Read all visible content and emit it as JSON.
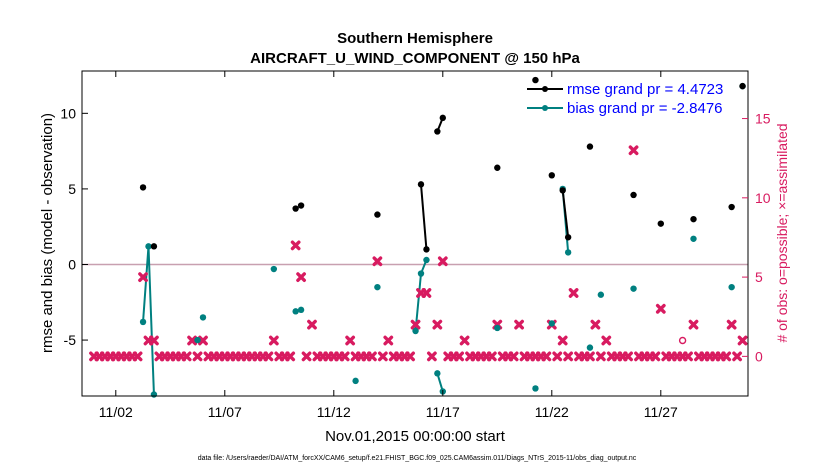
{
  "colors": {
    "rmse": "#000000",
    "bias": "#008080",
    "obs": "#d81b60",
    "zero": "#c8a0b0",
    "legend_text": "#0000ff"
  },
  "chart_data": {
    "type": "line",
    "title": "Southern Hemisphere",
    "subtitle": "AIRCRAFT_U_WIND_COMPONENT @ 150 hPa",
    "xlabel": "Nov.01,2015 00:00:00 start",
    "ylabel": "rmse and bias (model - observation)",
    "y2label": "# of obs: o=possible; ×=assimilated",
    "footnote": "data file: /Users/raeder/DAI/ATM_forcXX/CAM6_setup/f.e21.FHIST_BGC.f09_025.CAM6assim.011/Diags_NTrS_2015-11/obs_diag_output.nc",
    "xlim": [
      0.45,
      31.0
    ],
    "ylim": [
      -8.7,
      12.8
    ],
    "y2lim": [
      -2.5,
      18.0
    ],
    "xticks": [
      {
        "day": 2,
        "label": "11/02"
      },
      {
        "day": 7,
        "label": "11/07"
      },
      {
        "day": 12,
        "label": "11/12"
      },
      {
        "day": 17,
        "label": "11/17"
      },
      {
        "day": 22,
        "label": "11/22"
      },
      {
        "day": 27,
        "label": "11/27"
      }
    ],
    "yticks": [
      {
        "value": -5,
        "label": "-5"
      },
      {
        "value": 0,
        "label": "0"
      },
      {
        "value": 5,
        "label": "5"
      },
      {
        "value": 10,
        "label": "10"
      }
    ],
    "y2ticks": [
      {
        "value": 0,
        "label": "0"
      },
      {
        "value": 5,
        "label": "5"
      },
      {
        "value": 10,
        "label": "10"
      },
      {
        "value": 15,
        "label": "15"
      }
    ],
    "legend": [
      {
        "name": "rmse",
        "label": "rmse grand pr = 4.4723",
        "color": "#000000"
      },
      {
        "name": "bias",
        "label": "bias grand pr = -2.8476",
        "color": "#008080"
      }
    ],
    "rmse": [
      [
        [
          3.25,
          5.1
        ]
      ],
      [
        [
          3.75,
          1.2
        ]
      ],
      [
        [
          10.25,
          3.7
        ]
      ],
      [
        [
          10.5,
          3.9
        ]
      ],
      [
        [
          14.0,
          3.3
        ]
      ],
      [
        [
          16.0,
          5.3
        ],
        [
          16.25,
          1.0
        ]
      ],
      [
        [
          16.75,
          8.8
        ],
        [
          17.0,
          9.7
        ]
      ],
      [
        [
          19.5,
          6.4
        ]
      ],
      [
        [
          21.25,
          12.2
        ]
      ],
      [
        [
          22.0,
          5.9
        ]
      ],
      [
        [
          22.5,
          4.9
        ],
        [
          22.75,
          1.8
        ]
      ],
      [
        [
          23.75,
          7.8
        ]
      ],
      [
        [
          25.75,
          4.6
        ]
      ],
      [
        [
          27.0,
          2.7
        ]
      ],
      [
        [
          28.5,
          3.0
        ]
      ],
      [
        [
          30.25,
          3.8
        ]
      ],
      [
        [
          30.75,
          11.8
        ]
      ]
    ],
    "bias": [
      [
        [
          3.25,
          -3.8
        ],
        [
          3.5,
          1.2
        ],
        [
          3.75,
          -8.6
        ]
      ],
      [
        [
          5.75,
          -5.0
        ]
      ],
      [
        [
          6.0,
          -3.5
        ]
      ],
      [
        [
          9.25,
          -0.3
        ]
      ],
      [
        [
          10.25,
          -3.1
        ]
      ],
      [
        [
          10.5,
          -3.0
        ]
      ],
      [
        [
          13.0,
          -7.7
        ]
      ],
      [
        [
          14.0,
          -1.5
        ]
      ],
      [
        [
          15.75,
          -4.4
        ],
        [
          16.0,
          -0.6
        ],
        [
          16.25,
          0.3
        ]
      ],
      [
        [
          16.75,
          -7.2
        ],
        [
          17.0,
          -8.4
        ]
      ],
      [
        [
          19.5,
          -4.2
        ]
      ],
      [
        [
          21.25,
          -8.2
        ]
      ],
      [
        [
          22.0,
          -3.9
        ]
      ],
      [
        [
          22.5,
          5.0
        ],
        [
          22.75,
          0.8
        ]
      ],
      [
        [
          23.75,
          -5.5
        ]
      ],
      [
        [
          24.25,
          -2.0
        ]
      ],
      [
        [
          25.75,
          -1.6
        ]
      ],
      [
        [
          28.5,
          1.7
        ]
      ],
      [
        [
          30.25,
          -1.5
        ]
      ],
      [
        [
          30.75,
          11.8
        ]
      ]
    ],
    "obs_nonzero": [
      [
        3.25,
        5
      ],
      [
        3.5,
        1
      ],
      [
        3.75,
        1
      ],
      [
        5.5,
        1
      ],
      [
        6.0,
        1
      ],
      [
        9.25,
        1
      ],
      [
        10.25,
        7
      ],
      [
        10.5,
        5
      ],
      [
        11.0,
        2
      ],
      [
        12.75,
        1
      ],
      [
        14.0,
        6
      ],
      [
        14.5,
        1
      ],
      [
        15.75,
        2
      ],
      [
        16.0,
        4
      ],
      [
        16.25,
        4
      ],
      [
        16.75,
        2
      ],
      [
        17.0,
        6
      ],
      [
        18.0,
        1
      ],
      [
        19.5,
        2
      ],
      [
        20.5,
        2
      ],
      [
        22.0,
        2
      ],
      [
        22.5,
        1
      ],
      [
        23.0,
        4
      ],
      [
        24.0,
        2
      ],
      [
        24.5,
        1
      ],
      [
        25.75,
        13
      ],
      [
        27.0,
        3
      ],
      [
        28.5,
        2
      ],
      [
        30.25,
        2
      ],
      [
        30.75,
        1
      ]
    ],
    "obs_possible_only": [
      [
        28.0,
        1
      ]
    ]
  }
}
